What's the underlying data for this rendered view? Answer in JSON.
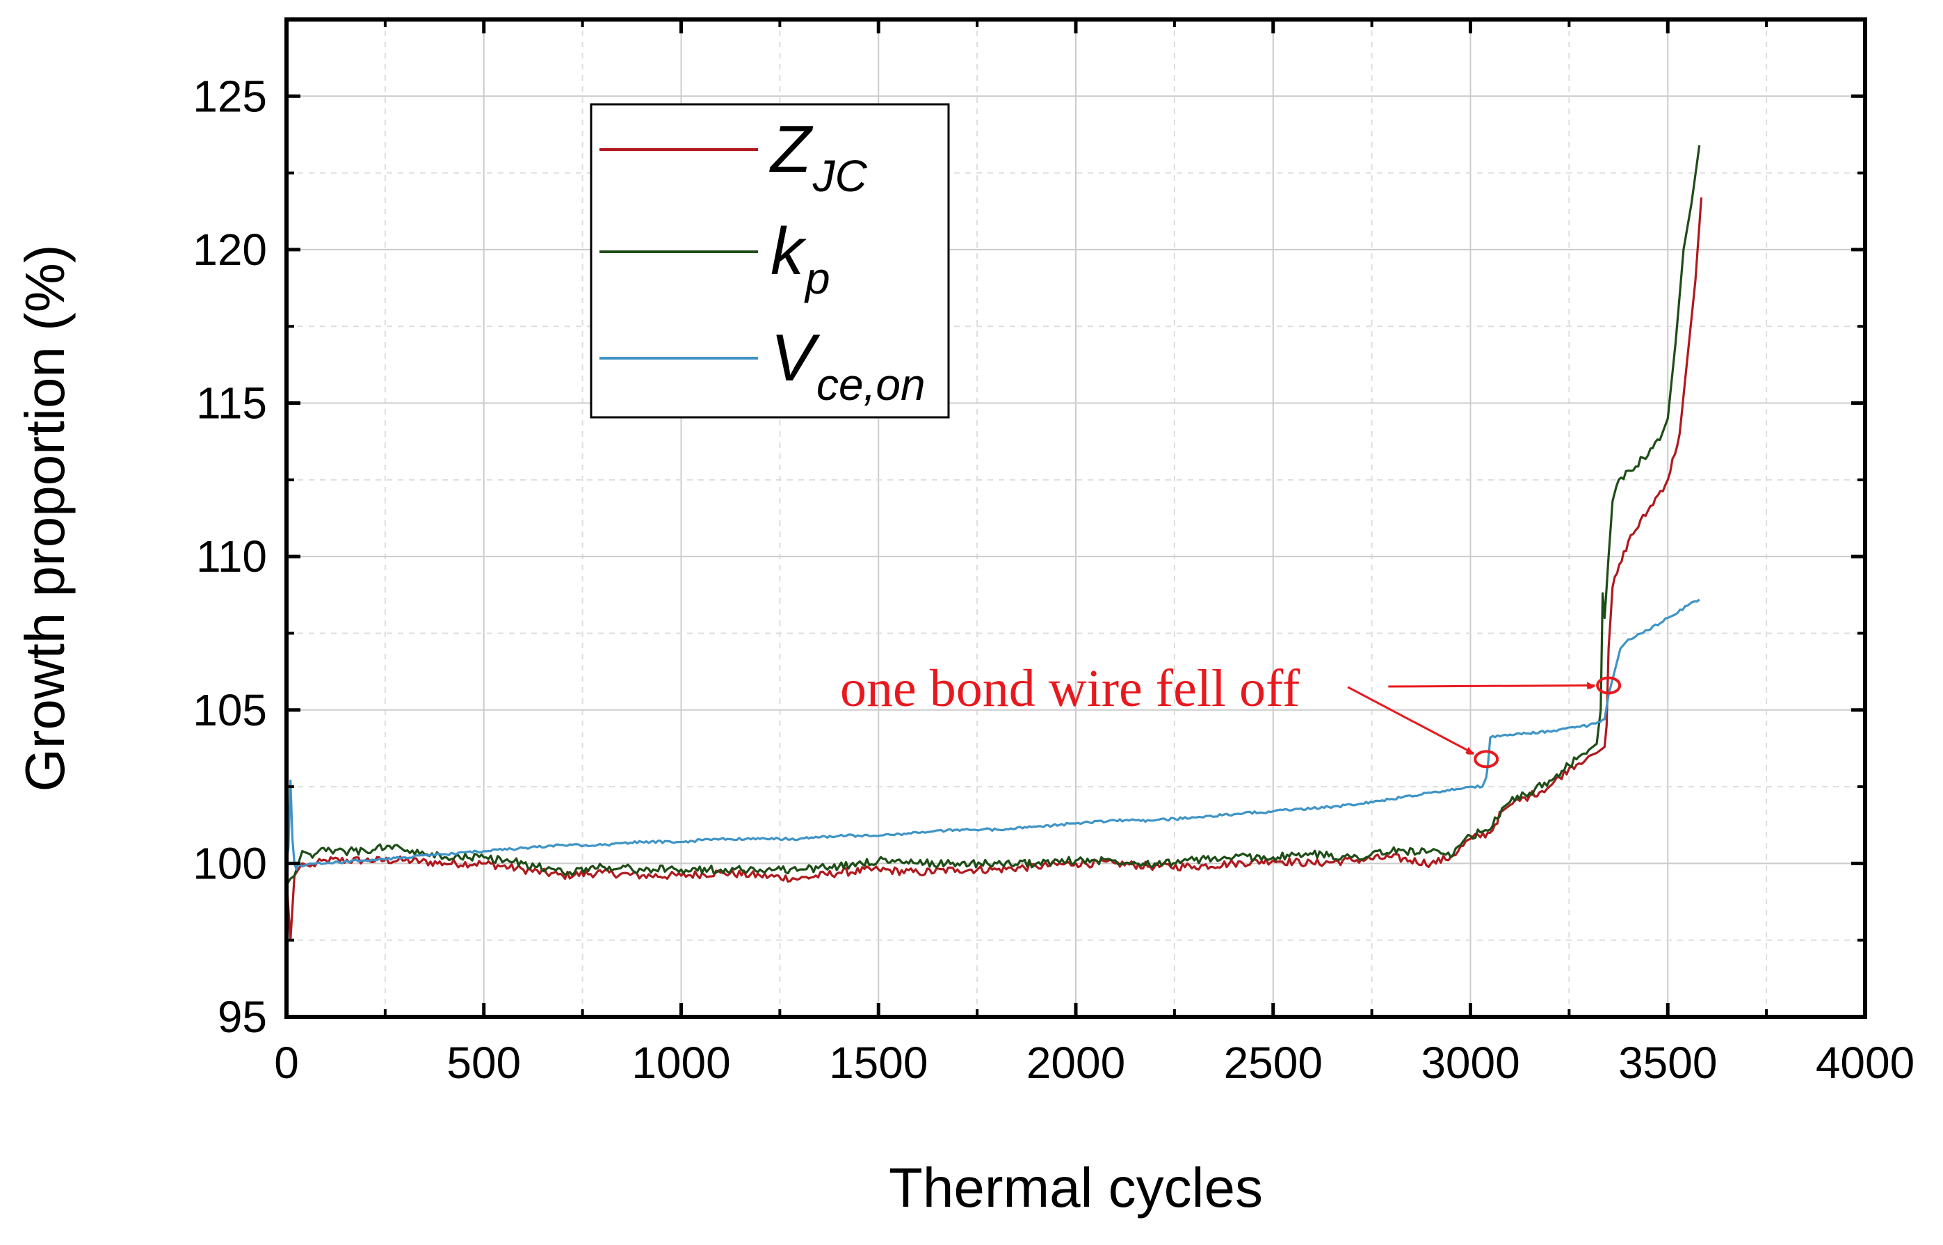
{
  "chart_data": {
    "type": "line",
    "xlabel": "Thermal cycles",
    "ylabel": "Growth proportion (%)",
    "xlim": [
      0,
      4000
    ],
    "ylim": [
      95,
      127.5
    ],
    "xticks": [
      0,
      500,
      1000,
      1500,
      2000,
      2500,
      3000,
      3500,
      4000
    ],
    "yticks": [
      95,
      100,
      105,
      110,
      115,
      120,
      125
    ],
    "grid": true,
    "legend_position": "top-left",
    "series": [
      {
        "name": "Z_JC",
        "label_main": "Z",
        "label_sub": "JC",
        "color": "#b0191e",
        "x": [
          0,
          10,
          20,
          40,
          60,
          100,
          200,
          300,
          400,
          500,
          600,
          700,
          800,
          900,
          1000,
          1100,
          1200,
          1300,
          1400,
          1500,
          1600,
          1700,
          1800,
          1900,
          2000,
          2100,
          2200,
          2300,
          2400,
          2500,
          2600,
          2700,
          2800,
          2900,
          2950,
          3000,
          3050,
          3080,
          3100,
          3150,
          3200,
          3250,
          3300,
          3320,
          3340,
          3345,
          3350,
          3360,
          3400,
          3450,
          3500,
          3530,
          3550,
          3570,
          3585
        ],
        "y": [
          99.5,
          97.5,
          99.6,
          100.0,
          99.9,
          100.1,
          100.1,
          100.1,
          100.0,
          100.0,
          99.8,
          99.6,
          99.7,
          99.6,
          99.6,
          99.7,
          99.6,
          99.5,
          99.7,
          99.8,
          99.7,
          99.8,
          99.8,
          99.9,
          100.0,
          100.0,
          99.9,
          99.9,
          100.0,
          100.1,
          100.0,
          100.1,
          100.2,
          100.0,
          100.2,
          100.8,
          101.0,
          101.7,
          101.9,
          102.2,
          102.5,
          103.1,
          103.5,
          103.6,
          103.8,
          104.5,
          107.0,
          109.0,
          110.5,
          111.5,
          112.5,
          114.0,
          116.5,
          119.0,
          121.7
        ]
      },
      {
        "name": "k_p",
        "label_main": "k",
        "label_sub": "p",
        "color": "#1e4d17",
        "x": [
          0,
          10,
          20,
          40,
          60,
          100,
          200,
          280,
          300,
          350,
          400,
          500,
          600,
          700,
          800,
          900,
          1000,
          1100,
          1200,
          1300,
          1400,
          1500,
          1600,
          1700,
          1800,
          1900,
          2000,
          2100,
          2200,
          2300,
          2400,
          2500,
          2600,
          2700,
          2800,
          2900,
          2950,
          3000,
          3050,
          3080,
          3100,
          3150,
          3200,
          3250,
          3300,
          3320,
          3330,
          3335,
          3340,
          3350,
          3360,
          3370,
          3400,
          3450,
          3480,
          3500,
          3520,
          3540,
          3560,
          3580
        ],
        "y": [
          99.3,
          99.5,
          99.6,
          100.4,
          100.3,
          100.4,
          100.4,
          100.6,
          100.4,
          100.3,
          100.2,
          100.2,
          100.0,
          99.7,
          99.9,
          99.8,
          99.8,
          99.8,
          99.8,
          99.8,
          99.9,
          100.1,
          100.0,
          100.0,
          100.0,
          100.0,
          100.1,
          100.1,
          100.0,
          100.1,
          100.2,
          100.2,
          100.3,
          100.2,
          100.4,
          100.4,
          100.2,
          100.9,
          101.1,
          101.8,
          102.0,
          102.3,
          102.7,
          103.2,
          103.7,
          103.9,
          105.0,
          108.8,
          108.0,
          110.0,
          111.8,
          112.3,
          112.8,
          113.3,
          113.8,
          114.5,
          117.0,
          120.0,
          121.5,
          123.4
        ]
      },
      {
        "name": "V_ce,on",
        "label_main": "V",
        "label_sub": "ce,on",
        "color": "#3f94c6",
        "x": [
          0,
          5,
          10,
          15,
          20,
          25,
          30,
          40,
          60,
          100,
          200,
          300,
          400,
          500,
          600,
          700,
          800,
          900,
          1000,
          1100,
          1200,
          1300,
          1400,
          1500,
          1600,
          1700,
          1800,
          1900,
          2000,
          2100,
          2200,
          2300,
          2400,
          2500,
          2600,
          2700,
          2800,
          2900,
          3000,
          3030,
          3040,
          3045,
          3050,
          3100,
          3200,
          3300,
          3340,
          3350,
          3360,
          3380,
          3400,
          3450,
          3500,
          3550,
          3580
        ],
        "y": [
          100.1,
          100.5,
          102.7,
          100.8,
          100.0,
          99.8,
          100.0,
          99.9,
          100.0,
          100.0,
          100.1,
          100.2,
          100.3,
          100.4,
          100.5,
          100.6,
          100.6,
          100.7,
          100.7,
          100.8,
          100.8,
          100.8,
          100.9,
          100.9,
          101.0,
          101.1,
          101.1,
          101.2,
          101.3,
          101.4,
          101.4,
          101.5,
          101.6,
          101.7,
          101.8,
          101.9,
          102.1,
          102.3,
          102.5,
          102.5,
          102.8,
          103.3,
          104.1,
          104.2,
          104.3,
          104.5,
          104.7,
          105.5,
          106.0,
          107.0,
          107.3,
          107.6,
          108.0,
          108.4,
          108.6
        ]
      }
    ],
    "annotation": {
      "text": "one bond wire fell off",
      "color": "#e8191e",
      "text_anchor": [
        2520,
        105.6
      ],
      "arrow_from_1": [
        3250,
        105.9
      ],
      "targets": [
        {
          "x": 3040,
          "y": 103.4
        },
        {
          "x": 3350,
          "y": 105.8
        }
      ],
      "from_2": [
        2800,
        105.0
      ]
    }
  }
}
